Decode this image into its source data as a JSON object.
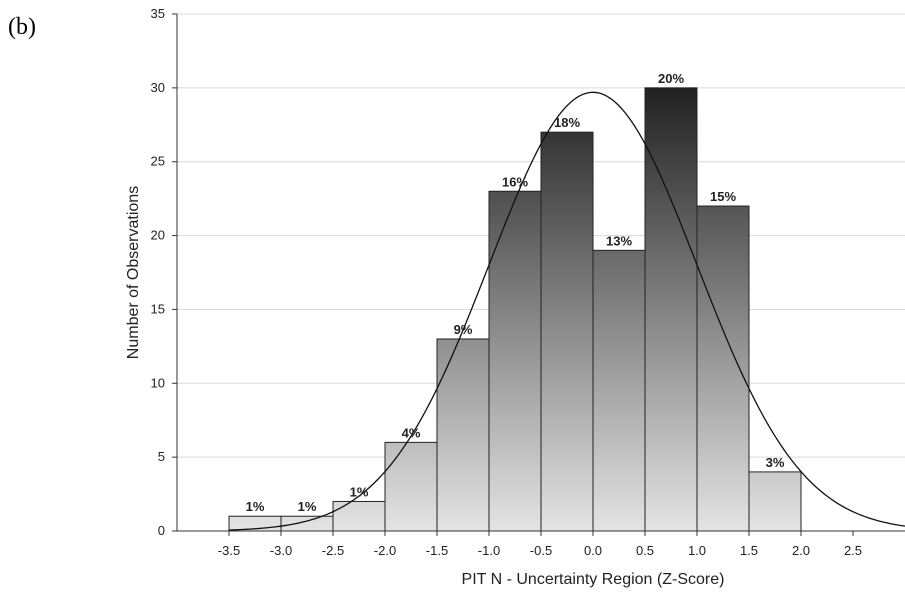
{
  "panel_label": "(b)",
  "chart_data": {
    "type": "bar",
    "subtype": "histogram",
    "xlabel": "PIT N - Uncertainty Region (Z-Score)",
    "ylabel": "Number of Observations",
    "xlim": [
      -4.0,
      3.0
    ],
    "ylim": [
      0,
      35
    ],
    "yticks": [
      0,
      5,
      10,
      15,
      20,
      25,
      30,
      35
    ],
    "xticks": [
      "-3.5",
      "-3.0",
      "-2.5",
      "-2.0",
      "-1.5",
      "-1.0",
      "-0.5",
      "0.0",
      "0.5",
      "1.0",
      "1.5",
      "2.0",
      "2.5"
    ],
    "grid": "horizontal",
    "bins": [
      {
        "from": -3.5,
        "to": -3.0,
        "value": 1,
        "label": "1%"
      },
      {
        "from": -3.0,
        "to": -2.5,
        "value": 1,
        "label": "1%"
      },
      {
        "from": -2.5,
        "to": -2.0,
        "value": 2,
        "label": "1%"
      },
      {
        "from": -2.0,
        "to": -1.5,
        "value": 6,
        "label": "4%"
      },
      {
        "from": -1.5,
        "to": -1.0,
        "value": 13,
        "label": "9%"
      },
      {
        "from": -1.0,
        "to": -0.5,
        "value": 23,
        "label": "16%"
      },
      {
        "from": -0.5,
        "to": 0.0,
        "value": 27,
        "label": "18%"
      },
      {
        "from": 0.0,
        "to": 0.5,
        "value": 19,
        "label": "13%"
      },
      {
        "from": 0.5,
        "to": 1.0,
        "value": 30,
        "label": "20%"
      },
      {
        "from": 1.0,
        "to": 1.5,
        "value": 22,
        "label": "15%"
      },
      {
        "from": 1.5,
        "to": 2.0,
        "value": 4,
        "label": "3%"
      }
    ],
    "fitted_curve": {
      "type": "normal",
      "mean": 0.0,
      "sd": 1.0,
      "peak": 29.7
    },
    "colors": {
      "bar_light": "#e4e4e4",
      "bar_dark": "#1f1f1f",
      "curve": "#111111",
      "grid": "#d8d8d8"
    }
  }
}
